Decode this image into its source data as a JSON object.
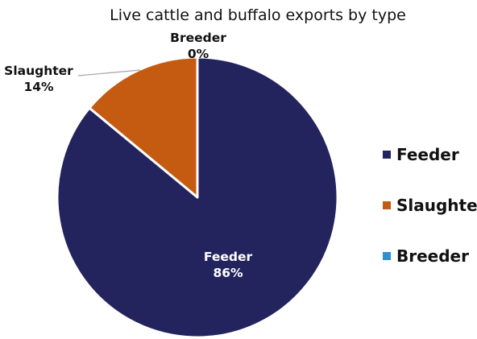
{
  "chart_data": {
    "type": "pie",
    "title": "Live cattle and buffalo exports by type",
    "categories": [
      "Feeder",
      "Slaughter",
      "Breeder"
    ],
    "values": [
      86,
      14,
      0
    ],
    "value_labels": [
      "86%",
      "14%",
      "0%"
    ],
    "colors": [
      "#23235e",
      "#c55a11",
      "#2e90d0"
    ],
    "legend": {
      "position": "right",
      "entries": [
        "Feeder",
        "Slaughter",
        "Breeder"
      ]
    }
  }
}
